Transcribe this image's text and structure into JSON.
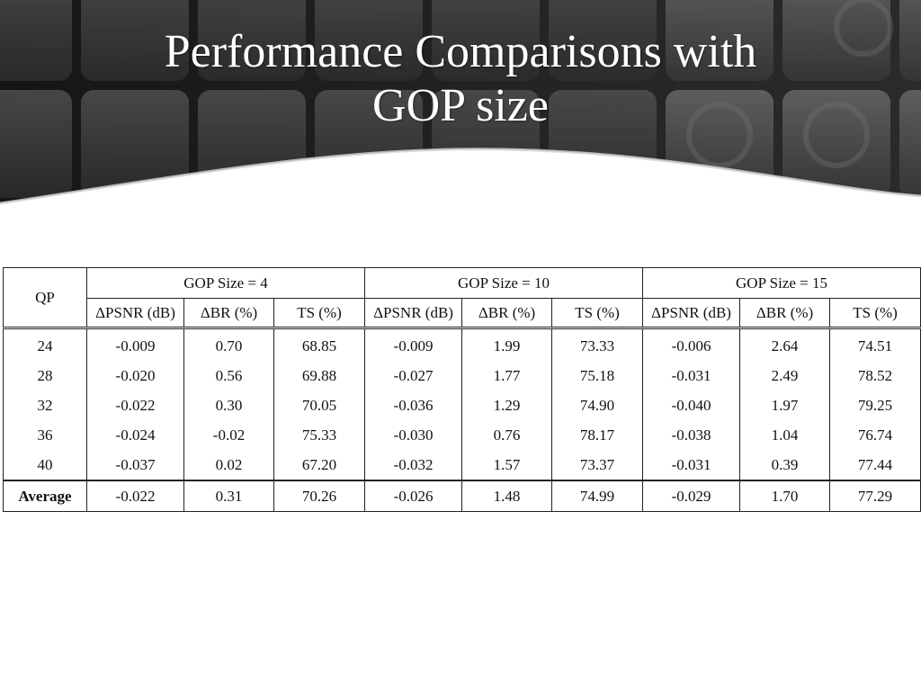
{
  "slide": {
    "title_line1": "Performance Comparisons with",
    "title_line2": "GOP size"
  },
  "table": {
    "qp_header": "QP",
    "groups": [
      "GOP Size = 4",
      "GOP Size = 10",
      "GOP Size = 15"
    ],
    "sub_headers": [
      "ΔPSNR (dB)",
      "ΔBR (%)",
      "TS (%)"
    ],
    "rows": [
      {
        "qp": "24",
        "values": [
          "-0.009",
          "0.70",
          "68.85",
          "-0.009",
          "1.99",
          "73.33",
          "-0.006",
          "2.64",
          "74.51"
        ]
      },
      {
        "qp": "28",
        "values": [
          "-0.020",
          "0.56",
          "69.88",
          "-0.027",
          "1.77",
          "75.18",
          "-0.031",
          "2.49",
          "78.52"
        ]
      },
      {
        "qp": "32",
        "values": [
          "-0.022",
          "0.30",
          "70.05",
          "-0.036",
          "1.29",
          "74.90",
          "-0.040",
          "1.97",
          "79.25"
        ]
      },
      {
        "qp": "36",
        "values": [
          "-0.024",
          "-0.02",
          "75.33",
          "-0.030",
          "0.76",
          "78.17",
          "-0.038",
          "1.04",
          "76.74"
        ]
      },
      {
        "qp": "40",
        "values": [
          "-0.037",
          "0.02",
          "67.20",
          "-0.032",
          "1.57",
          "73.37",
          "-0.031",
          "0.39",
          "77.44"
        ]
      }
    ],
    "average": {
      "label": "Average",
      "values": [
        "-0.022",
        "0.31",
        "70.26",
        "-0.026",
        "1.48",
        "74.99",
        "-0.029",
        "1.70",
        "77.29"
      ]
    }
  },
  "colors": {
    "banner_dark": "#2a2a2a",
    "banner_tile": "#5a5a5a",
    "title_text": "#ffffff",
    "table_text": "#111111"
  }
}
